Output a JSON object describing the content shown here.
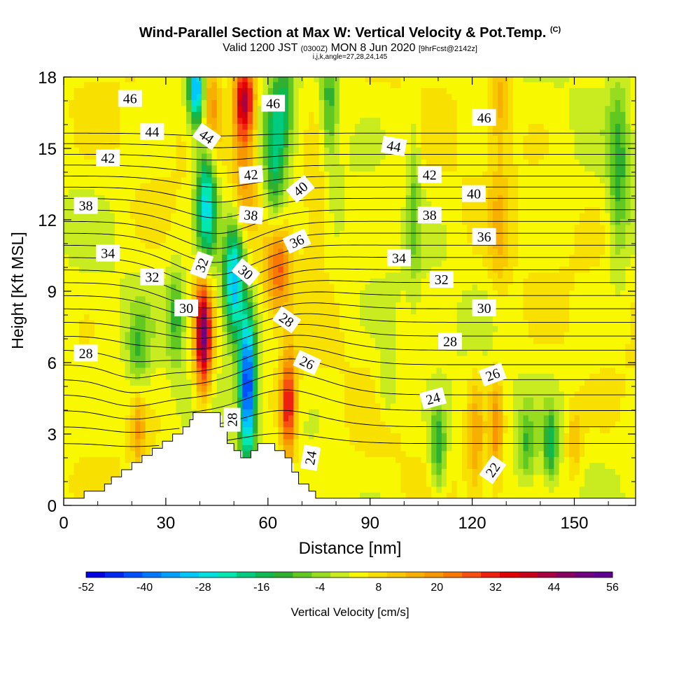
{
  "header": {
    "title_main": "Wind-Parallel Section at Max W: Vertical Velocity & Pot.Temp.",
    "title_tag": "(C)",
    "valid_a": "Valid 1200 JST",
    "valid_utc": "(0300Z)",
    "valid_b": "MON 8 Jun 2020",
    "valid_fcst": "[9hrFcst@2142z]",
    "indices": "i,j,k,angle=27,28,24,145"
  },
  "chart_data": {
    "type": "heatmap",
    "xlabel": "Distance [nm]",
    "ylabel": "Height [Kft MSL]",
    "xlim": [
      0,
      168
    ],
    "ylim": [
      0,
      18
    ],
    "xticks": [
      "0",
      "30",
      "60",
      "90",
      "120",
      "150"
    ],
    "yticks": [
      "0",
      "3",
      "6",
      "9",
      "12",
      "15",
      "18"
    ],
    "colorbar": {
      "label": "Vertical Velocity [cm/s]",
      "tick_labels": [
        "-52",
        "-40",
        "-28",
        "-16",
        "-4",
        "8",
        "20",
        "32",
        "44",
        "56"
      ],
      "colors": [
        "#0000e0",
        "#0028f0",
        "#0050ff",
        "#0078ff",
        "#00a0ff",
        "#00c8f8",
        "#00e0e0",
        "#00e8b0",
        "#00cc80",
        "#10b850",
        "#30b030",
        "#60c820",
        "#98dc20",
        "#c8ec20",
        "#f8f800",
        "#f8e000",
        "#f8c800",
        "#f8b000",
        "#f89800",
        "#f87800",
        "#f85010",
        "#f02010",
        "#e00000",
        "#c80018",
        "#a80040",
        "#880060",
        "#700080",
        "#600090"
      ]
    },
    "theta_labels": [
      {
        "text": "46",
        "x": 19.5,
        "y": 17.1,
        "angle": 0
      },
      {
        "text": "44",
        "x": 26,
        "y": 15.7,
        "angle": 0
      },
      {
        "text": "42",
        "x": 13,
        "y": 14.6,
        "angle": 0
      },
      {
        "text": "38",
        "x": 6.5,
        "y": 12.6,
        "angle": 0
      },
      {
        "text": "34",
        "x": 13,
        "y": 10.6,
        "angle": 0
      },
      {
        "text": "32",
        "x": 26,
        "y": 9.6,
        "angle": 0
      },
      {
        "text": "30",
        "x": 36,
        "y": 8.3,
        "angle": 0
      },
      {
        "text": "28",
        "x": 6.5,
        "y": 6.4,
        "angle": 0
      },
      {
        "text": "44",
        "x": 42,
        "y": 15.5,
        "angle": 35
      },
      {
        "text": "46",
        "x": 61.5,
        "y": 16.9,
        "angle": 0
      },
      {
        "text": "42",
        "x": 55,
        "y": 13.9,
        "angle": -5
      },
      {
        "text": "40",
        "x": 69.5,
        "y": 13.3,
        "angle": -40
      },
      {
        "text": "38",
        "x": 55,
        "y": 12.2,
        "angle": 5
      },
      {
        "text": "36",
        "x": 68.5,
        "y": 11.1,
        "angle": -25
      },
      {
        "text": "32",
        "x": 40.5,
        "y": 10.1,
        "angle": -70
      },
      {
        "text": "30",
        "x": 53.5,
        "y": 9.8,
        "angle": 40
      },
      {
        "text": "28",
        "x": 65.5,
        "y": 7.8,
        "angle": 35
      },
      {
        "text": "26",
        "x": 71.5,
        "y": 6.0,
        "angle": 25
      },
      {
        "text": "28",
        "x": 49.5,
        "y": 3.6,
        "angle": -90
      },
      {
        "text": "24",
        "x": 72.5,
        "y": 2.0,
        "angle": -80
      },
      {
        "text": "44",
        "x": 97,
        "y": 15.1,
        "angle": 10
      },
      {
        "text": "46",
        "x": 123.5,
        "y": 16.3,
        "angle": 0
      },
      {
        "text": "42",
        "x": 107.5,
        "y": 13.9,
        "angle": 0
      },
      {
        "text": "40",
        "x": 120.5,
        "y": 13.1,
        "angle": 0
      },
      {
        "text": "38",
        "x": 107.5,
        "y": 12.2,
        "angle": 0
      },
      {
        "text": "36",
        "x": 123.5,
        "y": 11.3,
        "angle": 0
      },
      {
        "text": "34",
        "x": 98.5,
        "y": 10.4,
        "angle": 0
      },
      {
        "text": "32",
        "x": 111,
        "y": 9.5,
        "angle": 0
      },
      {
        "text": "30",
        "x": 123.5,
        "y": 8.3,
        "angle": 0
      },
      {
        "text": "28",
        "x": 113.5,
        "y": 6.9,
        "angle": 0
      },
      {
        "text": "26",
        "x": 126,
        "y": 5.5,
        "angle": -20
      },
      {
        "text": "24",
        "x": 108.5,
        "y": 4.5,
        "angle": -15
      },
      {
        "text": "22",
        "x": 126,
        "y": 1.5,
        "angle": -55
      }
    ]
  }
}
